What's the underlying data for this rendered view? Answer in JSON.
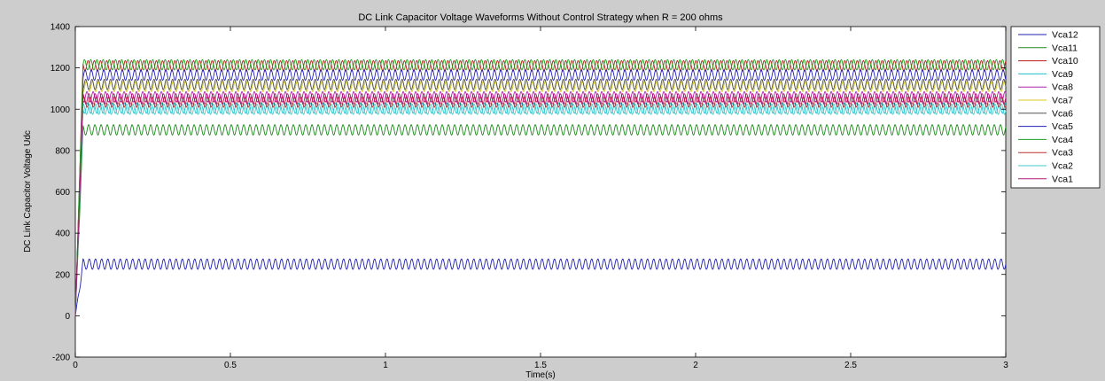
{
  "chart_data": {
    "type": "line",
    "title": "DC Link Capacitor Voltage Waveforms Without Control Strategy when R = 200 ohms",
    "xlabel": "Time(s)",
    "ylabel": "DC Link Capacitor Voltage Udc",
    "xlim": [
      0,
      3
    ],
    "ylim": [
      -200,
      1400
    ],
    "xticks": [
      0,
      0.5,
      1,
      1.5,
      2,
      2.5,
      3
    ],
    "xtick_labels": [
      "0",
      "0.5",
      "1",
      "1.5",
      "2",
      "2.5",
      "3"
    ],
    "yticks": [
      -200,
      0,
      200,
      400,
      600,
      800,
      1000,
      1200,
      1400
    ],
    "ytick_labels": [
      "-200",
      "0",
      "200",
      "400",
      "600",
      "800",
      "1000",
      "1200",
      "1400"
    ],
    "grid": false,
    "legend_position": "outside-top-right",
    "ripple_cycles_approx": 150,
    "rise_time_s": 0.025,
    "series": [
      {
        "name": "Vca12",
        "color": "#1f1fb0",
        "mean": 250,
        "ripple_amplitude": 25
      },
      {
        "name": "Vca11",
        "color": "#1a8a1a",
        "mean": 900,
        "ripple_amplitude": 25
      },
      {
        "name": "Vca10",
        "color": "#c01a1a",
        "mean": 1210,
        "ripple_amplitude": 25
      },
      {
        "name": "Vca9",
        "color": "#20c0c8",
        "mean": 1005,
        "ripple_amplitude": 25
      },
      {
        "name": "Vca8",
        "color": "#b020b0",
        "mean": 1060,
        "ripple_amplitude": 25
      },
      {
        "name": "Vca7",
        "color": "#d8c820",
        "mean": 1110,
        "ripple_amplitude": 25
      },
      {
        "name": "Vca6",
        "color": "#505050",
        "mean": 1120,
        "ripple_amplitude": 25
      },
      {
        "name": "Vca5",
        "color": "#2020c0",
        "mean": 1165,
        "ripple_amplitude": 25
      },
      {
        "name": "Vca4",
        "color": "#20a020",
        "mean": 1215,
        "ripple_amplitude": 25
      },
      {
        "name": "Vca3",
        "color": "#c03030",
        "mean": 1035,
        "ripple_amplitude": 25
      },
      {
        "name": "Vca2",
        "color": "#40c8d0",
        "mean": 1000,
        "ripple_amplitude": 25
      },
      {
        "name": "Vca1",
        "color": "#b01870",
        "mean": 1050,
        "ripple_amplitude": 25
      }
    ]
  }
}
